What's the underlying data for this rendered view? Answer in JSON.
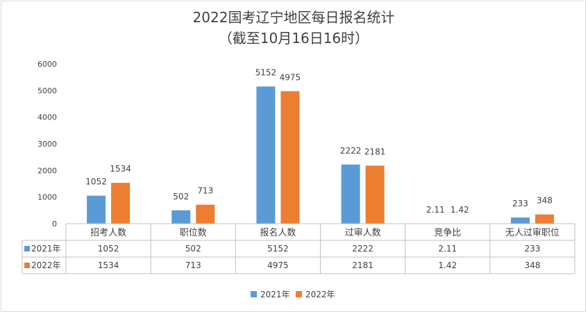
{
  "chart_data": {
    "type": "bar",
    "title": "2022国考辽宁地区每日报名统计",
    "subtitle": "（截至10月16日16时）",
    "categories": [
      "招考人数",
      "职位数",
      "报名人数",
      "过审人数",
      "竞争比",
      "无人过审职位"
    ],
    "series": [
      {
        "name": "2021年",
        "color": "#5b9bd5",
        "values": [
          1052,
          502,
          5152,
          2222,
          2.11,
          233
        ],
        "labels": [
          "1052",
          "502",
          "5152",
          "2222",
          "2.11",
          "233"
        ]
      },
      {
        "name": "2022年",
        "color": "#ed7d31",
        "values": [
          1534,
          713,
          4975,
          2181,
          1.42,
          348
        ],
        "labels": [
          "1534",
          "713",
          "4975",
          "2181",
          "1.42",
          "348"
        ]
      }
    ],
    "ylim": [
      0,
      6000
    ],
    "yticks": [
      "0",
      "1000",
      "2000",
      "3000",
      "4000",
      "5000",
      "6000"
    ],
    "data_table": true,
    "legend_position": "bottom"
  }
}
